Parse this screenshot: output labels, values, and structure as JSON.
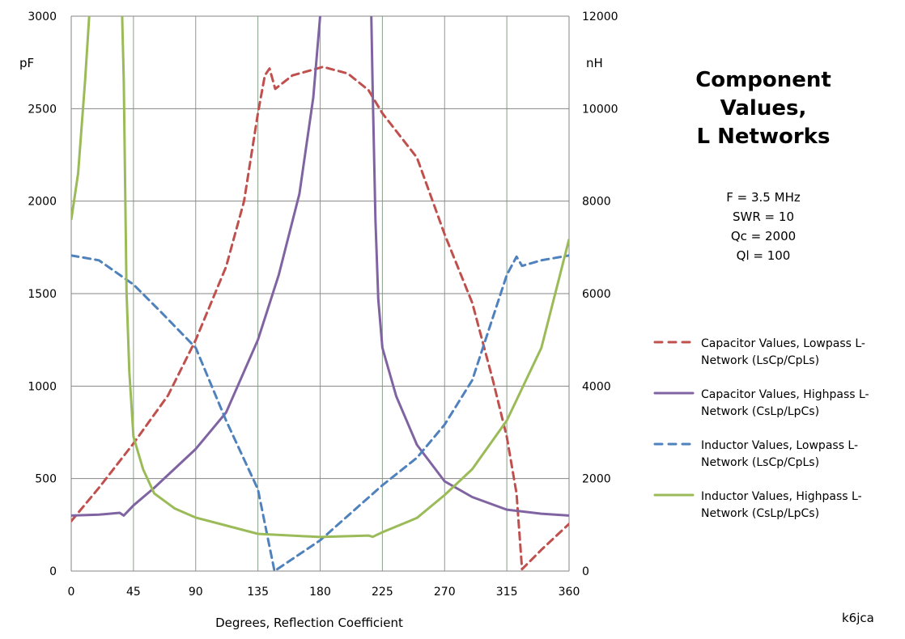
{
  "chart_data": {
    "type": "line",
    "title": "Component Values, L Networks",
    "title_lines": [
      "Component",
      "Values,",
      "L Networks"
    ],
    "parameters": [
      "F = 3.5 MHz",
      "SWR = 10",
      "Qc = 2000",
      "Ql = 100"
    ],
    "xlabel": "Degrees, Reflection Coefficient",
    "ylabel_left": "pF",
    "ylabel_right": "nH",
    "xlim": [
      0,
      360
    ],
    "ylim_left": [
      0,
      3000
    ],
    "ylim_right": [
      0,
      12000
    ],
    "x_ticks": [
      "0",
      "45",
      "90",
      "135",
      "180",
      "225",
      "270",
      "315",
      "360"
    ],
    "y_ticks_left": [
      "0",
      "500",
      "1000",
      "1500",
      "2000",
      "2500",
      "3000"
    ],
    "y_ticks_right": [
      "0",
      "2000",
      "4000",
      "6000",
      "8000",
      "10000",
      "12000"
    ],
    "grid": true,
    "legend_position": "right",
    "credit": "k6jca",
    "series": [
      {
        "name": "Capacitor Values, Lowpass L-Network (LsCp/CpLs)",
        "legend_lines": [
          "Capacitor Values, Lowpass L-",
          "Network (LsCp/CpLs)"
        ],
        "axis": "left",
        "color": "#C0504D",
        "dash": true,
        "points": [
          [
            0,
            270
          ],
          [
            20,
            450
          ],
          [
            45,
            690
          ],
          [
            70,
            950
          ],
          [
            90,
            1250
          ],
          [
            112,
            1645
          ],
          [
            125,
            2000
          ],
          [
            135,
            2475
          ],
          [
            140,
            2680
          ],
          [
            143.4,
            2717
          ],
          [
            147.5,
            2607
          ],
          [
            160,
            2680
          ],
          [
            182,
            2726
          ],
          [
            200,
            2690
          ],
          [
            215,
            2600
          ],
          [
            225,
            2475
          ],
          [
            250,
            2235
          ],
          [
            270,
            1820
          ],
          [
            290,
            1450
          ],
          [
            305,
            1030
          ],
          [
            315,
            725
          ],
          [
            322,
            420
          ],
          [
            326,
            10
          ],
          [
            340,
            115
          ],
          [
            360,
            255
          ]
        ]
      },
      {
        "name": "Capacitor Values, Highpass L-Network (CsLp/LpCs)",
        "legend_lines": [
          "Capacitor Values, Highpass L-",
          "Network (CsLp/LpCs)"
        ],
        "axis": "left",
        "color": "#8064A2",
        "dash": false,
        "points": [
          [
            0,
            300
          ],
          [
            20,
            305
          ],
          [
            35,
            315
          ],
          [
            38,
            300
          ],
          [
            45,
            355
          ],
          [
            60,
            450
          ],
          [
            90,
            660
          ],
          [
            112,
            857
          ],
          [
            135,
            1250
          ],
          [
            150,
            1600
          ],
          [
            165,
            2040
          ],
          [
            175,
            2560
          ],
          [
            180,
            3000
          ],
          [
            182,
            3400
          ],
          [
            216,
            3400
          ],
          [
            218,
            2600
          ],
          [
            220,
            1900
          ],
          [
            222,
            1470
          ],
          [
            225,
            1207
          ],
          [
            235,
            945
          ],
          [
            250,
            682
          ],
          [
            270,
            485
          ],
          [
            290,
            400
          ],
          [
            315,
            332
          ],
          [
            340,
            310
          ],
          [
            360,
            300
          ]
        ]
      },
      {
        "name": "Inductor Values, Lowpass L-Network (LsCp/CpLs)",
        "legend_lines": [
          "Inductor Values, Lowpass L-",
          "Network (LsCp/CpLs)"
        ],
        "axis": "right",
        "color": "#4F81BD",
        "dash": true,
        "points": [
          [
            0,
            6825
          ],
          [
            20,
            6720
          ],
          [
            45,
            6196
          ],
          [
            65,
            5600
          ],
          [
            90,
            4828
          ],
          [
            112,
            3256
          ],
          [
            135,
            1768
          ],
          [
            147,
            0
          ],
          [
            180,
            664
          ],
          [
            225,
            1856
          ],
          [
            250,
            2450
          ],
          [
            270,
            3168
          ],
          [
            290,
            4128
          ],
          [
            315,
            6404
          ],
          [
            322,
            6800
          ],
          [
            326,
            6600
          ],
          [
            340,
            6720
          ],
          [
            360,
            6825
          ]
        ]
      },
      {
        "name": "Inductor Values, Highpass L-Network (CsLp/LpCs)",
        "legend_lines": [
          "Inductor Values, Highpass L-",
          "Network (CsLp/LpCs)"
        ],
        "axis": "right",
        "color": "#9BBB59",
        "dash": false,
        "points": [
          [
            0,
            7594
          ],
          [
            5,
            8600
          ],
          [
            10,
            10600
          ],
          [
            13,
            12000
          ],
          [
            15,
            13000
          ],
          [
            36,
            13000
          ],
          [
            38,
            10600
          ],
          [
            40,
            6052
          ],
          [
            42,
            4300
          ],
          [
            45,
            2904
          ],
          [
            52,
            2200
          ],
          [
            60,
            1680
          ],
          [
            75,
            1350
          ],
          [
            90,
            1156
          ],
          [
            135,
            804
          ],
          [
            180,
            736
          ],
          [
            215,
            768
          ],
          [
            218,
            740
          ],
          [
            225,
            840
          ],
          [
            250,
            1150
          ],
          [
            270,
            1644
          ],
          [
            290,
            2204
          ],
          [
            315,
            3256
          ],
          [
            340,
            4828
          ],
          [
            360,
            7176
          ]
        ]
      }
    ]
  }
}
